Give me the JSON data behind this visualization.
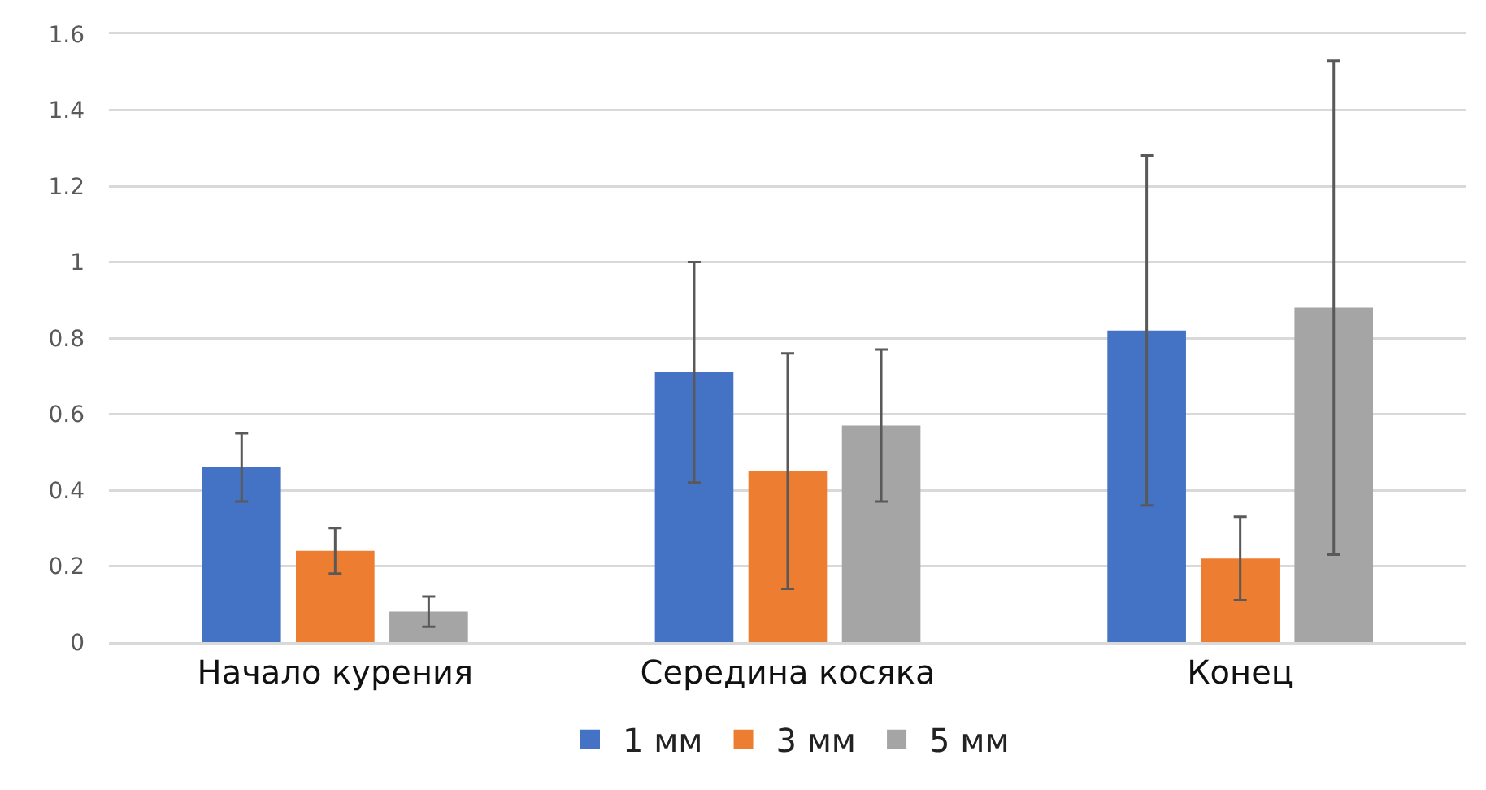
{
  "chart_data": {
    "type": "bar",
    "categories": [
      "Начало курения",
      "Середина косяка",
      "Конец"
    ],
    "series": [
      {
        "name": "1 мм",
        "color": "#4472c4",
        "values": [
          0.46,
          0.71,
          0.82
        ],
        "errors": [
          0.09,
          0.29,
          0.46
        ]
      },
      {
        "name": "3 мм",
        "color": "#ed7d31",
        "values": [
          0.24,
          0.45,
          0.22
        ],
        "errors": [
          0.06,
          0.31,
          0.11
        ]
      },
      {
        "name": "5 мм",
        "color": "#a5a5a5",
        "values": [
          0.08,
          0.57,
          0.88
        ],
        "errors": [
          0.04,
          0.2,
          0.65
        ]
      }
    ],
    "ylim": [
      0,
      1.6
    ],
    "yticks": [
      0,
      0.2,
      0.4,
      0.6,
      0.8,
      1,
      1.2,
      1.4,
      1.6
    ],
    "grid": "y",
    "legend": "bottom"
  }
}
